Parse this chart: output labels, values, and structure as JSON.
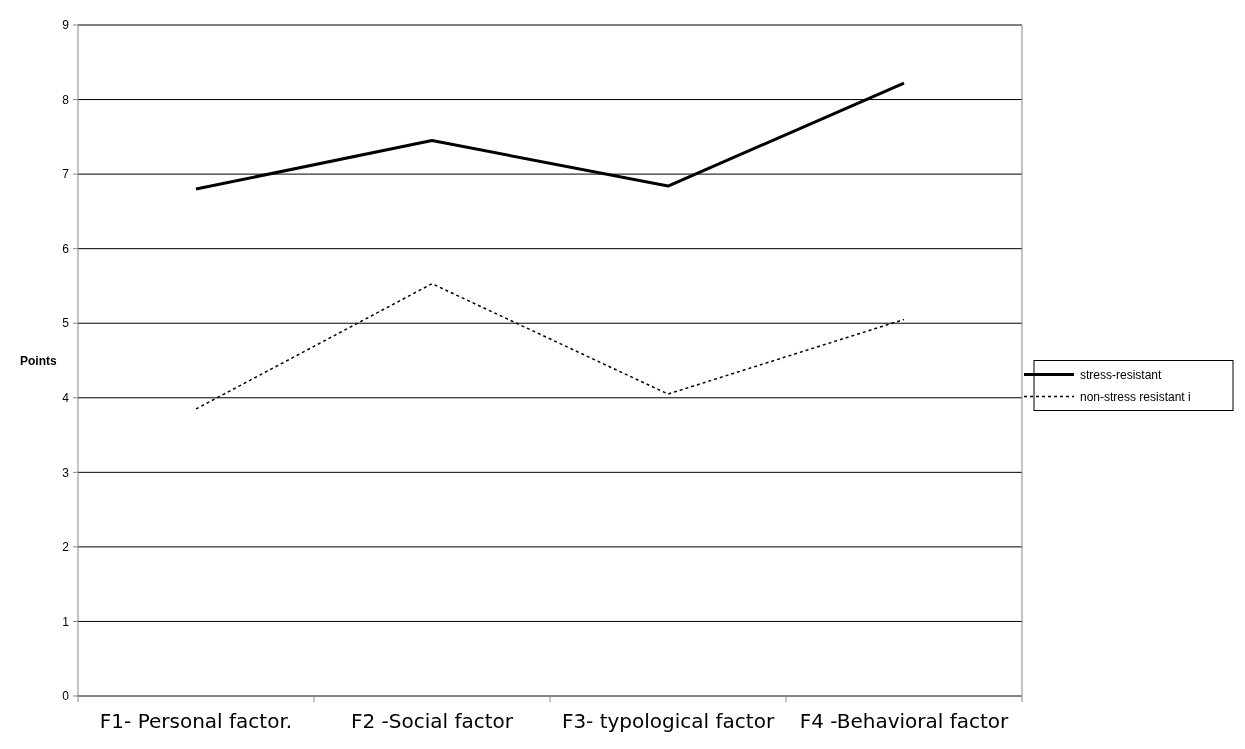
{
  "chart_data": {
    "type": "line",
    "ylabel": "Points",
    "categories": [
      "F1- Personal factor.",
      "F2 -Social factor",
      "F3- typological factor",
      "F4 -Behavioral factor"
    ],
    "series": [
      {
        "name": "stress-resistant",
        "color": "#000000",
        "values": [
          6.8,
          7.45,
          6.84,
          8.22
        ],
        "line_style": "solid"
      },
      {
        "name": "non-stress resistant i",
        "color": "#000000",
        "values": [
          3.85,
          5.53,
          4.05,
          5.05
        ],
        "line_style": "dotted"
      }
    ],
    "ylim": [
      0,
      9
    ],
    "yticks": [
      0,
      1,
      2,
      3,
      4,
      5,
      6,
      7,
      8,
      9
    ],
    "grid": "y",
    "legend": "right",
    "marker": "none"
  }
}
